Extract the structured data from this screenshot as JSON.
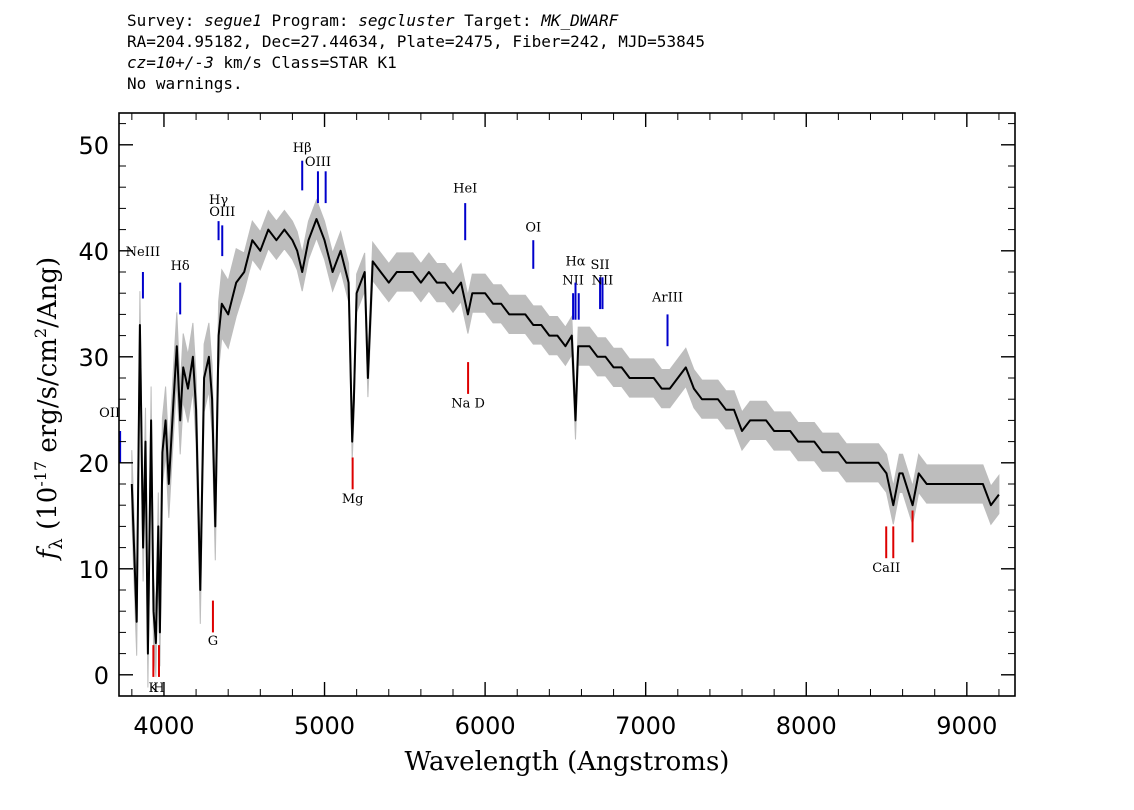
{
  "header": {
    "line1": [
      {
        "text": "Survey: ",
        "italic": false
      },
      {
        "text": "segue1",
        "italic": true
      },
      {
        "text": " Program: ",
        "italic": false
      },
      {
        "text": "segcluster",
        "italic": true
      },
      {
        "text": " Target: ",
        "italic": false
      },
      {
        "text": "MK_DWARF",
        "italic": true
      }
    ],
    "line2": "RA=204.95182, Dec=27.44634, Plate=2475, Fiber=242, MJD=53845",
    "line3": [
      {
        "text": "cz=10+/-3",
        "italic": true
      },
      {
        "text": " km/s Class=STAR K1",
        "italic": false
      }
    ],
    "line4": "No warnings."
  },
  "chart_data": {
    "type": "line",
    "xlabel": "Wavelength (Angstroms)",
    "ylabel": "f_λ (10^-17 erg/s/cm^2/Ang)",
    "xlim": [
      3720,
      9300
    ],
    "ylim": [
      -2,
      53
    ],
    "x_ticks": [
      4000,
      5000,
      6000,
      7000,
      8000,
      9000
    ],
    "y_ticks": [
      0,
      10,
      20,
      30,
      40,
      50
    ],
    "colors": {
      "flux": "#000000",
      "error_band": "#bdbdbd",
      "emission": "#0000cc",
      "absorption": "#dd0000"
    },
    "series": [
      {
        "name": "flux",
        "x": [
          3800,
          3830,
          3850,
          3870,
          3885,
          3900,
          3920,
          3935,
          3950,
          3965,
          3975,
          3990,
          4010,
          4030,
          4060,
          4080,
          4101,
          4120,
          4150,
          4180,
          4200,
          4226,
          4250,
          4280,
          4300,
          4320,
          4340,
          4360,
          4400,
          4450,
          4500,
          4550,
          4600,
          4650,
          4700,
          4750,
          4800,
          4830,
          4861,
          4900,
          4950,
          5000,
          5050,
          5100,
          5150,
          5172,
          5183,
          5200,
          5250,
          5270,
          5300,
          5350,
          5400,
          5450,
          5500,
          5550,
          5600,
          5650,
          5700,
          5750,
          5800,
          5850,
          5893,
          5920,
          5950,
          6000,
          6050,
          6100,
          6150,
          6200,
          6250,
          6300,
          6350,
          6400,
          6450,
          6500,
          6540,
          6563,
          6580,
          6600,
          6650,
          6700,
          6750,
          6800,
          6850,
          6900,
          6950,
          7000,
          7050,
          7100,
          7150,
          7200,
          7250,
          7300,
          7350,
          7400,
          7450,
          7500,
          7550,
          7600,
          7650,
          7700,
          7750,
          7800,
          7850,
          7900,
          7950,
          8000,
          8050,
          8100,
          8150,
          8200,
          8250,
          8300,
          8350,
          8400,
          8450,
          8500,
          8542,
          8580,
          8600,
          8662,
          8700,
          8750,
          8800,
          8850,
          8900,
          8950,
          9000,
          9050,
          9100,
          9150,
          9200
        ],
        "y": [
          18,
          5,
          33,
          12,
          22,
          2,
          24,
          6,
          3,
          14,
          4,
          21,
          24,
          18,
          26,
          31,
          24,
          29,
          27,
          30,
          25,
          8,
          28,
          30,
          26,
          14,
          32,
          35,
          34,
          37,
          38,
          41,
          40,
          42,
          41,
          42,
          41,
          40,
          38,
          41,
          43,
          41,
          38,
          40,
          37,
          22,
          26,
          36,
          38,
          28,
          39,
          38,
          37,
          38,
          38,
          38,
          37,
          38,
          37,
          37,
          36,
          37,
          34,
          36,
          36,
          36,
          35,
          35,
          34,
          34,
          34,
          33,
          33,
          32,
          32,
          31,
          32,
          24,
          31,
          31,
          31,
          30,
          30,
          29,
          29,
          28,
          28,
          28,
          28,
          27,
          27,
          28,
          29,
          27,
          26,
          26,
          26,
          25,
          25,
          23,
          24,
          24,
          24,
          23,
          23,
          23,
          22,
          22,
          22,
          21,
          21,
          21,
          20,
          20,
          20,
          20,
          20,
          19,
          16,
          19,
          19,
          16,
          19,
          18,
          18,
          18,
          18,
          18,
          18,
          18,
          18,
          16,
          17
        ]
      }
    ],
    "annotations": [
      {
        "label": "OII",
        "x": 3727,
        "kind": "emission",
        "y_from": 20,
        "y_to": 23,
        "label_y": 24.3,
        "anchor": "end"
      },
      {
        "label": "NeIII",
        "x": 3869,
        "kind": "emission",
        "y_from": 35.5,
        "y_to": 38,
        "label_y": 39.5
      },
      {
        "label": "Hδ",
        "x": 4101,
        "kind": "emission",
        "y_from": 34,
        "y_to": 37,
        "label_y": 38.2
      },
      {
        "label": "Hγ",
        "x": 4340,
        "kind": "emission",
        "y_from": 41,
        "y_to": 42.8,
        "label_y": 44.4
      },
      {
        "label": "OIII",
        "x": 4363,
        "kind": "emission",
        "y_from": 39.5,
        "y_to": 42.4,
        "label_y": 43.3
      },
      {
        "label": "Hβ",
        "x": 4861,
        "kind": "emission",
        "y_from": 45.7,
        "y_to": 48.5,
        "label_y": 49.3
      },
      {
        "label": "OIII",
        "x": 4959,
        "kind": "emission",
        "y_from": 44.5,
        "y_to": 47.5,
        "label_y": 48
      },
      {
        "label": "OIII",
        "x": 5007,
        "kind": "emission",
        "y_from": 44.5,
        "y_to": 47.5,
        "label_y": null
      },
      {
        "label": "HeI",
        "x": 5876,
        "kind": "emission",
        "y_from": 41,
        "y_to": 44.5,
        "label_y": 45.5
      },
      {
        "label": "OI",
        "x": 6300,
        "kind": "emission",
        "y_from": 38.3,
        "y_to": 41,
        "label_y": 41.8
      },
      {
        "label": "NII",
        "x": 6548,
        "kind": "emission",
        "y_from": 33.5,
        "y_to": 36,
        "label_y": 36.8
      },
      {
        "label": "Hα",
        "x": 6563,
        "kind": "emission",
        "y_from": 33.5,
        "y_to": 37,
        "label_y": 38.6
      },
      {
        "label": "NII",
        "x": 6583,
        "kind": "emission",
        "y_from": 33.5,
        "y_to": 36,
        "label_y": null
      },
      {
        "label": "SII",
        "x": 6716,
        "kind": "emission",
        "y_from": 34.5,
        "y_to": 37.5,
        "label_y": 38.3
      },
      {
        "label": "NII",
        "x": 6731,
        "kind": "emission",
        "y_from": 34.5,
        "y_to": 37.5,
        "label_y": 36.8
      },
      {
        "label": "ArIII",
        "x": 7136,
        "kind": "emission",
        "y_from": 31,
        "y_to": 34,
        "label_y": 35.2
      },
      {
        "label": "K",
        "x": 3934,
        "kind": "absorption",
        "y_from": -0.2,
        "y_to": 2.8,
        "label_y": -1.6
      },
      {
        "label": "H",
        "x": 3969,
        "kind": "absorption",
        "y_from": -0.2,
        "y_to": 2.8,
        "label_y": -1.6
      },
      {
        "label": "G",
        "x": 4305,
        "kind": "absorption",
        "y_from": 4,
        "y_to": 7,
        "label_y": 2.8
      },
      {
        "label": "Mg",
        "x": 5175,
        "kind": "absorption",
        "y_from": 17.5,
        "y_to": 20.5,
        "label_y": 16.2
      },
      {
        "label": "Na D",
        "x": 5894,
        "kind": "absorption",
        "y_from": 26.5,
        "y_to": 29.5,
        "label_y": 25.2
      },
      {
        "label": "CaII",
        "x": 8498,
        "kind": "absorption",
        "y_from": 11,
        "y_to": 14,
        "label_y": 9.7
      },
      {
        "label": "CaII",
        "x": 8542,
        "kind": "absorption",
        "y_from": 11,
        "y_to": 14,
        "label_y": null
      },
      {
        "label": "CaII",
        "x": 8662,
        "kind": "absorption",
        "y_from": 12.5,
        "y_to": 15.5,
        "label_y": null
      }
    ]
  }
}
